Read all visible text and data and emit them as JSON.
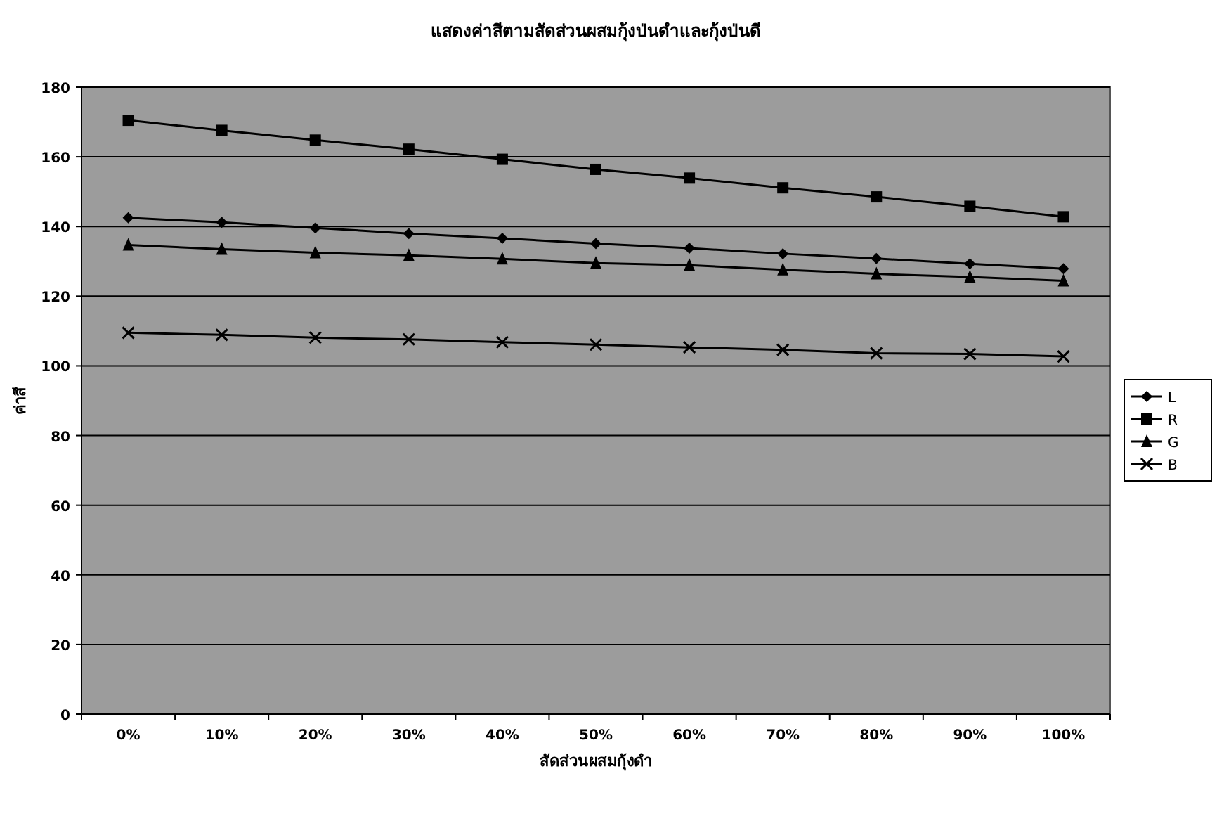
{
  "chart_data": {
    "type": "line",
    "title": "แสดงค่าสีตามสัดส่วนผสมกุ้งป่นดำและกุ้งป่นดี",
    "xlabel": "สัดส่วนผสมกุ้งดำ",
    "ylabel": "ค่าสี",
    "categories": [
      "0%",
      "10%",
      "20%",
      "30%",
      "40%",
      "50%",
      "60%",
      "70%",
      "80%",
      "90%",
      "100%"
    ],
    "series": [
      {
        "name": "L",
        "color": "#000000",
        "marker": "diamond",
        "values": [
          142.5,
          141.2,
          139.6,
          138.0,
          136.6,
          135.1,
          133.8,
          132.2,
          130.8,
          129.3,
          127.9
        ]
      },
      {
        "name": "R",
        "color": "#000000",
        "marker": "square",
        "values": [
          170.5,
          167.6,
          164.8,
          162.2,
          159.3,
          156.4,
          153.9,
          151.1,
          148.5,
          145.8,
          142.8
        ]
      },
      {
        "name": "G",
        "color": "#000000",
        "marker": "triangle",
        "values": [
          134.7,
          133.5,
          132.5,
          131.7,
          130.7,
          129.5,
          128.9,
          127.6,
          126.4,
          125.5,
          124.4
        ]
      },
      {
        "name": "B",
        "color": "#000000",
        "marker": "cross",
        "values": [
          109.5,
          108.9,
          108.1,
          107.6,
          106.8,
          106.1,
          105.3,
          104.6,
          103.6,
          103.4,
          102.7
        ]
      }
    ],
    "ylim": [
      0,
      180
    ],
    "yticks": [
      0,
      20,
      40,
      60,
      80,
      100,
      120,
      140,
      160,
      180
    ],
    "grid": "y",
    "legend": "right",
    "line_style": "solid"
  }
}
